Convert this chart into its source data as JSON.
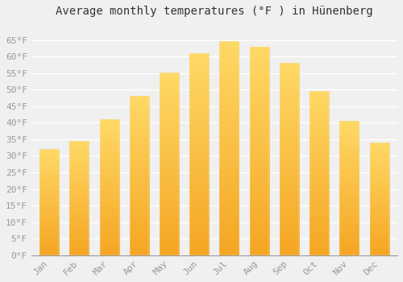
{
  "title": "Average monthly temperatures (°F ) in Hünenberg",
  "months": [
    "Jan",
    "Feb",
    "Mar",
    "Apr",
    "May",
    "Jun",
    "Jul",
    "Aug",
    "Sep",
    "Oct",
    "Nov",
    "Dec"
  ],
  "values": [
    32,
    34.5,
    41,
    48,
    55,
    61,
    64.5,
    63,
    58,
    49.5,
    40.5,
    34
  ],
  "bar_color_bottom": "#F5A623",
  "bar_color_top": "#FFD966",
  "ylim": [
    0,
    70
  ],
  "yticks": [
    0,
    5,
    10,
    15,
    20,
    25,
    30,
    35,
    40,
    45,
    50,
    55,
    60,
    65
  ],
  "ytick_labels": [
    "0°F",
    "5°F",
    "10°F",
    "15°F",
    "20°F",
    "25°F",
    "30°F",
    "35°F",
    "40°F",
    "45°F",
    "50°F",
    "55°F",
    "60°F",
    "65°F"
  ],
  "background_color": "#f0f0f0",
  "grid_color": "#ffffff",
  "title_fontsize": 10,
  "tick_fontsize": 8,
  "tick_color": "#999999",
  "font_family": "monospace",
  "bar_width": 0.65
}
